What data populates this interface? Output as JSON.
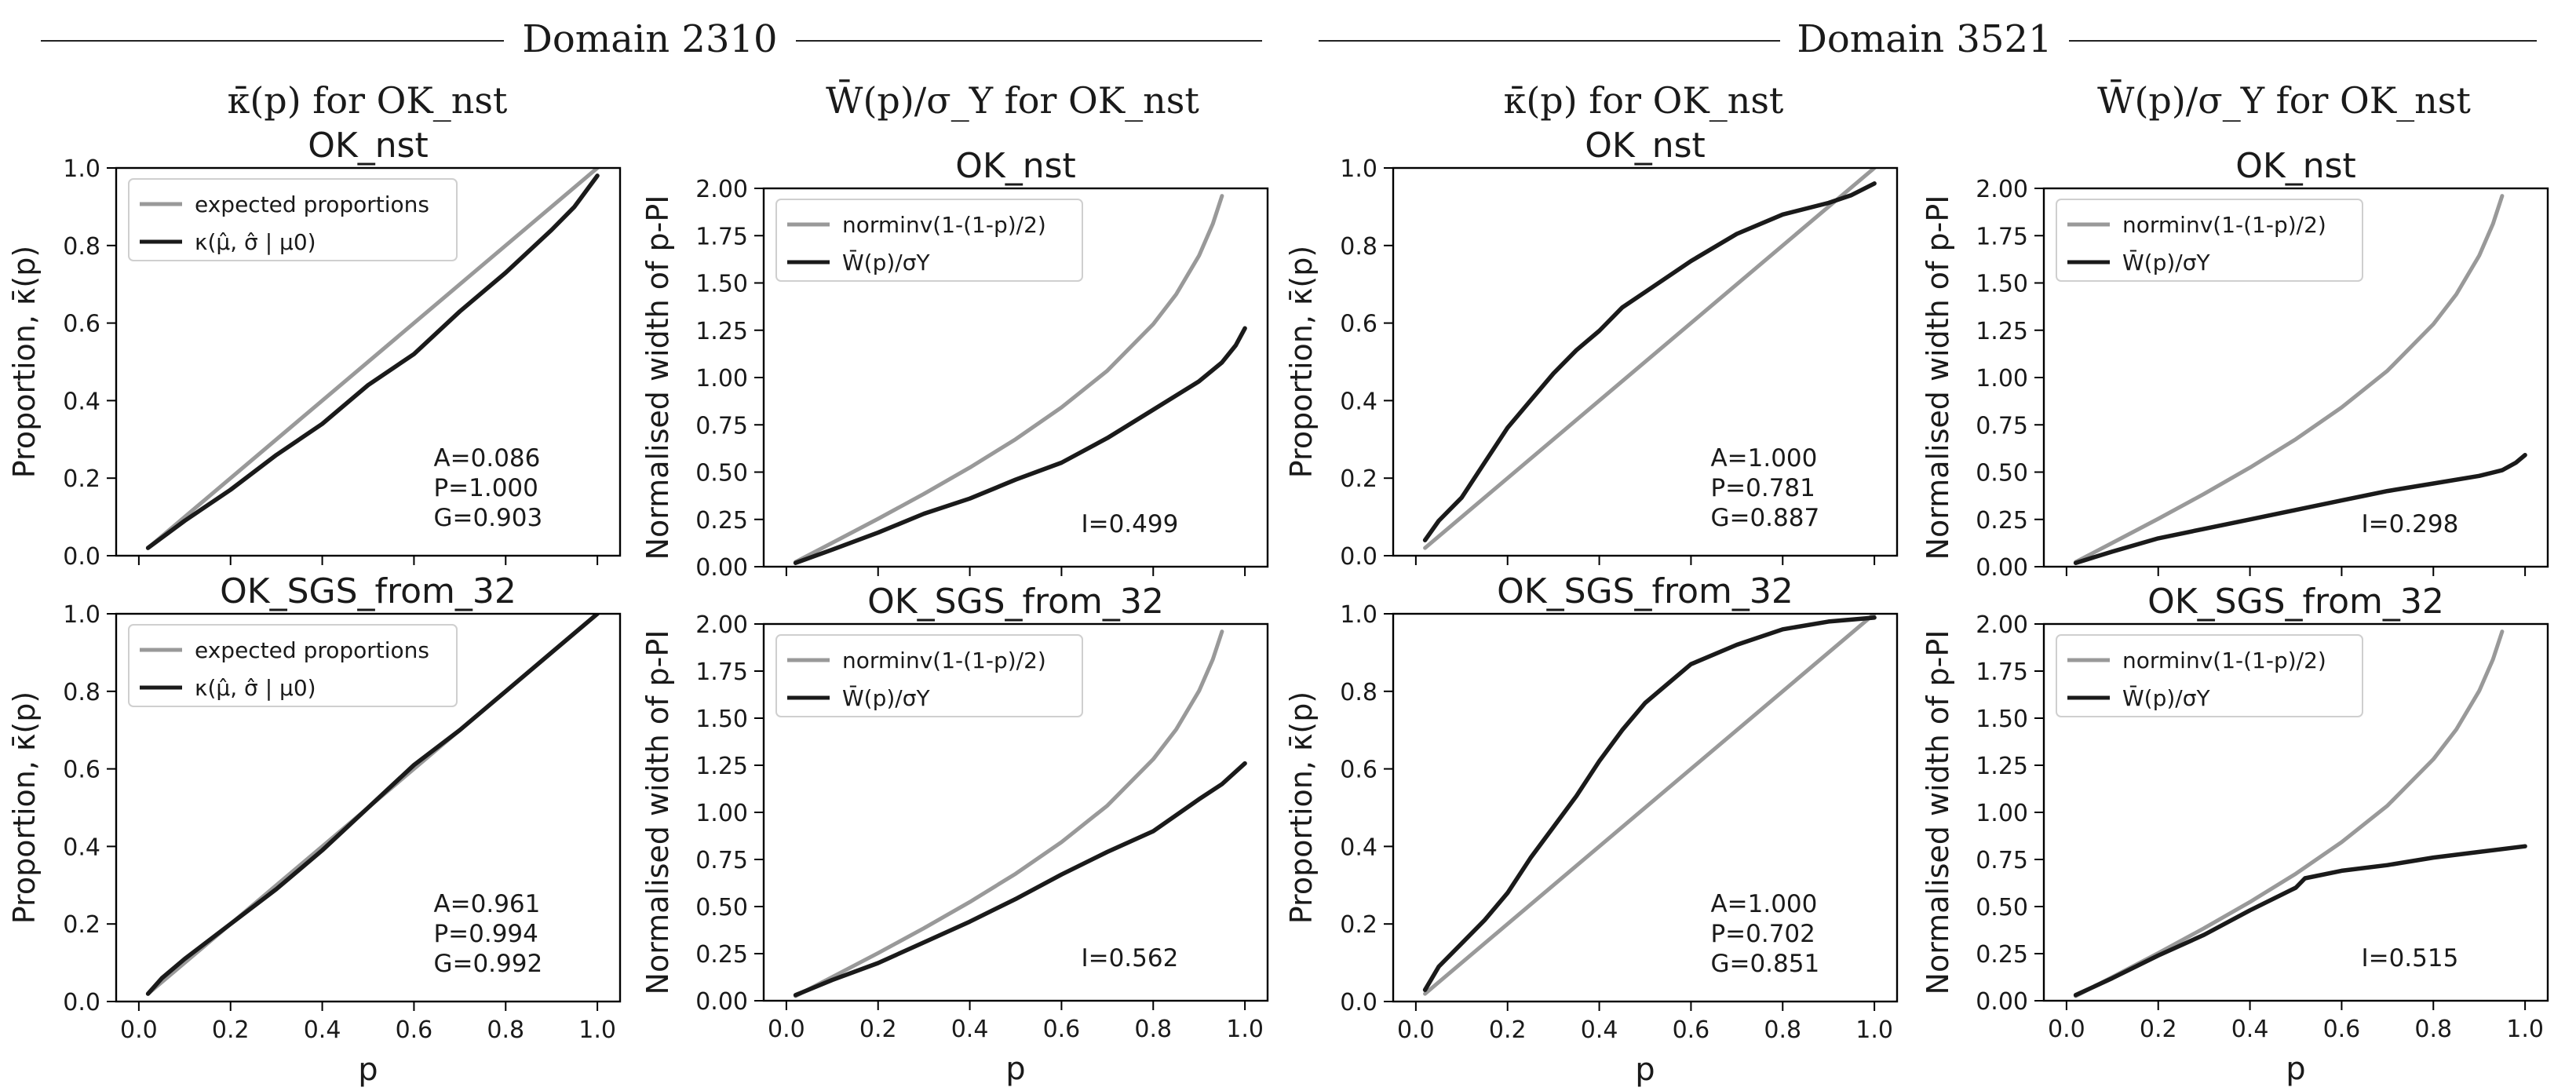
{
  "domains": [
    {
      "label": "Domain 2310"
    },
    {
      "label": "Domain 3521"
    }
  ],
  "column_headers": [
    {
      "math": "κ̄(p)",
      "rest": " for OK_nst"
    },
    {
      "math": "W̄(p)/σ_Y",
      "rest": " for OK_nst"
    },
    {
      "math": "κ̄(p)",
      "rest": " for OK_nst"
    },
    {
      "math": "W̄(p)/σ_Y",
      "rest": " for OK_nst"
    }
  ],
  "colors": {
    "reference": "#999999",
    "observed": "#1a1a1a"
  },
  "chart_data": [
    {
      "type": "line",
      "kind": "proportion",
      "domain": "Domain 2310",
      "title": "OK_nst",
      "xlabel": "p",
      "ylabel": "Proportion, κ̄(p)",
      "xlim": [
        0,
        1
      ],
      "ylim": [
        0,
        1
      ],
      "xticks": [
        "0.0",
        "0.2",
        "0.4",
        "0.6",
        "0.8",
        "1.0"
      ],
      "yticks": [
        "0.0",
        "0.2",
        "0.4",
        "0.6",
        "0.8",
        "1.0"
      ],
      "show_xtick_labels": false,
      "legend": [
        "expected proportions",
        "κ(μ̂, σ̂ | μ0)"
      ],
      "annotation": [
        "A=0.086",
        "P=1.000",
        "G=0.903"
      ],
      "series": [
        {
          "name": "expected proportions",
          "role": "reference",
          "x": [
            0.02,
            1.0
          ],
          "y": [
            0.02,
            1.0
          ]
        },
        {
          "name": "κ(μ̂, σ̂ | μ0)",
          "role": "observed",
          "x": [
            0.02,
            0.1,
            0.2,
            0.3,
            0.4,
            0.5,
            0.6,
            0.7,
            0.8,
            0.9,
            0.95,
            1.0
          ],
          "y": [
            0.02,
            0.09,
            0.17,
            0.26,
            0.34,
            0.44,
            0.52,
            0.63,
            0.73,
            0.84,
            0.9,
            0.98
          ]
        }
      ]
    },
    {
      "type": "line",
      "kind": "width",
      "domain": "Domain 2310",
      "title": "OK_nst",
      "xlabel": "p",
      "ylabel": "Normalised width of p-PI",
      "xlim": [
        0,
        1
      ],
      "ylim": [
        0,
        2
      ],
      "xticks": [
        "0.0",
        "0.2",
        "0.4",
        "0.6",
        "0.8",
        "1.0"
      ],
      "yticks": [
        "0.00",
        "0.25",
        "0.50",
        "0.75",
        "1.00",
        "1.25",
        "1.50",
        "1.75",
        "2.00"
      ],
      "show_xtick_labels": false,
      "legend": [
        "norminv(1-(1-p)/2)",
        "W̄(p)/σY"
      ],
      "annotation": [
        "I=0.499"
      ],
      "series": [
        {
          "name": "norminv(1-(1-p)/2)",
          "role": "reference",
          "x": [
            0.02,
            0.1,
            0.2,
            0.3,
            0.4,
            0.5,
            0.6,
            0.7,
            0.8,
            0.85,
            0.9,
            0.93,
            0.95
          ],
          "y": [
            0.025,
            0.126,
            0.253,
            0.385,
            0.524,
            0.674,
            0.842,
            1.036,
            1.282,
            1.44,
            1.645,
            1.812,
            1.96
          ]
        },
        {
          "name": "W̄(p)/σY",
          "role": "observed",
          "x": [
            0.02,
            0.1,
            0.2,
            0.3,
            0.4,
            0.5,
            0.6,
            0.7,
            0.8,
            0.9,
            0.95,
            0.98,
            1.0
          ],
          "y": [
            0.02,
            0.09,
            0.18,
            0.28,
            0.36,
            0.46,
            0.55,
            0.68,
            0.83,
            0.98,
            1.08,
            1.17,
            1.26
          ]
        }
      ]
    },
    {
      "type": "line",
      "kind": "proportion",
      "domain": "Domain 3521",
      "title": "OK_nst",
      "xlabel": "p",
      "ylabel": "Proportion, κ̄(p)",
      "xlim": [
        0,
        1
      ],
      "ylim": [
        0,
        1
      ],
      "xticks": [
        "0.0",
        "0.2",
        "0.4",
        "0.6",
        "0.8",
        "1.0"
      ],
      "yticks": [
        "0.0",
        "0.2",
        "0.4",
        "0.6",
        "0.8",
        "1.0"
      ],
      "show_xtick_labels": false,
      "legend": [],
      "annotation": [
        "A=1.000",
        "P=0.781",
        "G=0.887"
      ],
      "series": [
        {
          "name": "expected proportions",
          "role": "reference",
          "x": [
            0.02,
            1.0
          ],
          "y": [
            0.02,
            1.0
          ]
        },
        {
          "name": "κ(μ̂, σ̂ | μ0)",
          "role": "observed",
          "x": [
            0.02,
            0.05,
            0.1,
            0.15,
            0.2,
            0.25,
            0.3,
            0.35,
            0.4,
            0.45,
            0.5,
            0.6,
            0.7,
            0.8,
            0.9,
            0.95,
            1.0
          ],
          "y": [
            0.04,
            0.09,
            0.15,
            0.24,
            0.33,
            0.4,
            0.47,
            0.53,
            0.58,
            0.64,
            0.68,
            0.76,
            0.83,
            0.88,
            0.91,
            0.93,
            0.96
          ]
        }
      ]
    },
    {
      "type": "line",
      "kind": "width",
      "domain": "Domain 3521",
      "title": "OK_nst",
      "xlabel": "p",
      "ylabel": "Normalised width of p-PI",
      "xlim": [
        0,
        1
      ],
      "ylim": [
        0,
        2
      ],
      "xticks": [
        "0.0",
        "0.2",
        "0.4",
        "0.6",
        "0.8",
        "1.0"
      ],
      "yticks": [
        "0.00",
        "0.25",
        "0.50",
        "0.75",
        "1.00",
        "1.25",
        "1.50",
        "1.75",
        "2.00"
      ],
      "show_xtick_labels": false,
      "legend": [
        "norminv(1-(1-p)/2)",
        "W̄(p)/σY"
      ],
      "annotation": [
        "I=0.298"
      ],
      "series": [
        {
          "name": "norminv(1-(1-p)/2)",
          "role": "reference",
          "x": [
            0.02,
            0.1,
            0.2,
            0.3,
            0.4,
            0.5,
            0.6,
            0.7,
            0.8,
            0.85,
            0.9,
            0.93,
            0.95
          ],
          "y": [
            0.025,
            0.126,
            0.253,
            0.385,
            0.524,
            0.674,
            0.842,
            1.036,
            1.282,
            1.44,
            1.645,
            1.812,
            1.96
          ]
        },
        {
          "name": "W̄(p)/σY",
          "role": "observed",
          "x": [
            0.02,
            0.1,
            0.2,
            0.3,
            0.4,
            0.5,
            0.6,
            0.7,
            0.8,
            0.9,
            0.95,
            0.98,
            1.0
          ],
          "y": [
            0.02,
            0.08,
            0.15,
            0.2,
            0.25,
            0.3,
            0.35,
            0.4,
            0.44,
            0.48,
            0.51,
            0.55,
            0.59
          ]
        }
      ]
    },
    {
      "type": "line",
      "kind": "proportion",
      "domain": "Domain 2310",
      "title": "OK_SGS_from_32",
      "xlabel": "p",
      "ylabel": "Proportion, κ̄(p)",
      "xlim": [
        0,
        1
      ],
      "ylim": [
        0,
        1
      ],
      "xticks": [
        "0.0",
        "0.2",
        "0.4",
        "0.6",
        "0.8",
        "1.0"
      ],
      "yticks": [
        "0.0",
        "0.2",
        "0.4",
        "0.6",
        "0.8",
        "1.0"
      ],
      "show_xtick_labels": true,
      "legend": [
        "expected proportions",
        "κ(μ̂, σ̂ | μ0)"
      ],
      "annotation": [
        "A=0.961",
        "P=0.994",
        "G=0.992"
      ],
      "series": [
        {
          "name": "expected proportions",
          "role": "reference",
          "x": [
            0.02,
            1.0
          ],
          "y": [
            0.02,
            1.0
          ]
        },
        {
          "name": "κ(μ̂, σ̂ | μ0)",
          "role": "observed",
          "x": [
            0.02,
            0.05,
            0.1,
            0.2,
            0.3,
            0.4,
            0.5,
            0.6,
            0.7,
            0.8,
            0.9,
            1.0
          ],
          "y": [
            0.02,
            0.06,
            0.11,
            0.2,
            0.29,
            0.39,
            0.5,
            0.61,
            0.7,
            0.8,
            0.9,
            1.0
          ]
        }
      ]
    },
    {
      "type": "line",
      "kind": "width",
      "domain": "Domain 2310",
      "title": "OK_SGS_from_32",
      "xlabel": "p",
      "ylabel": "Normalised width of p-PI",
      "xlim": [
        0,
        1
      ],
      "ylim": [
        0,
        2
      ],
      "xticks": [
        "0.0",
        "0.2",
        "0.4",
        "0.6",
        "0.8",
        "1.0"
      ],
      "yticks": [
        "0.00",
        "0.25",
        "0.50",
        "0.75",
        "1.00",
        "1.25",
        "1.50",
        "1.75",
        "2.00"
      ],
      "show_xtick_labels": true,
      "legend": [
        "norminv(1-(1-p)/2)",
        "W̄(p)/σY"
      ],
      "annotation": [
        "I=0.562"
      ],
      "series": [
        {
          "name": "norminv(1-(1-p)/2)",
          "role": "reference",
          "x": [
            0.02,
            0.1,
            0.2,
            0.3,
            0.4,
            0.5,
            0.6,
            0.7,
            0.8,
            0.85,
            0.9,
            0.93,
            0.95
          ],
          "y": [
            0.025,
            0.126,
            0.253,
            0.385,
            0.524,
            0.674,
            0.842,
            1.036,
            1.282,
            1.44,
            1.645,
            1.812,
            1.96
          ]
        },
        {
          "name": "W̄(p)/σY",
          "role": "observed",
          "x": [
            0.02,
            0.1,
            0.2,
            0.3,
            0.4,
            0.5,
            0.6,
            0.7,
            0.8,
            0.9,
            0.95,
            1.0
          ],
          "y": [
            0.03,
            0.11,
            0.2,
            0.31,
            0.42,
            0.54,
            0.67,
            0.79,
            0.9,
            1.07,
            1.15,
            1.26
          ]
        }
      ]
    },
    {
      "type": "line",
      "kind": "proportion",
      "domain": "Domain 3521",
      "title": "OK_SGS_from_32",
      "xlabel": "p",
      "ylabel": "Proportion, κ̄(p)",
      "xlim": [
        0,
        1
      ],
      "ylim": [
        0,
        1
      ],
      "xticks": [
        "0.0",
        "0.2",
        "0.4",
        "0.6",
        "0.8",
        "1.0"
      ],
      "yticks": [
        "0.0",
        "0.2",
        "0.4",
        "0.6",
        "0.8",
        "1.0"
      ],
      "show_xtick_labels": true,
      "legend": [],
      "annotation": [
        "A=1.000",
        "P=0.702",
        "G=0.851"
      ],
      "series": [
        {
          "name": "expected proportions",
          "role": "reference",
          "x": [
            0.02,
            1.0
          ],
          "y": [
            0.02,
            1.0
          ]
        },
        {
          "name": "κ(μ̂, σ̂ | μ0)",
          "role": "observed",
          "x": [
            0.02,
            0.05,
            0.1,
            0.15,
            0.2,
            0.25,
            0.3,
            0.35,
            0.4,
            0.45,
            0.5,
            0.55,
            0.6,
            0.7,
            0.8,
            0.9,
            1.0
          ],
          "y": [
            0.03,
            0.09,
            0.15,
            0.21,
            0.28,
            0.37,
            0.45,
            0.53,
            0.62,
            0.7,
            0.77,
            0.82,
            0.87,
            0.92,
            0.96,
            0.98,
            0.99
          ]
        }
      ]
    },
    {
      "type": "line",
      "kind": "width",
      "domain": "Domain 3521",
      "title": "OK_SGS_from_32",
      "xlabel": "p",
      "ylabel": "Normalised width of p-PI",
      "xlim": [
        0,
        1
      ],
      "ylim": [
        0,
        2
      ],
      "xticks": [
        "0.0",
        "0.2",
        "0.4",
        "0.6",
        "0.8",
        "1.0"
      ],
      "yticks": [
        "0.00",
        "0.25",
        "0.50",
        "0.75",
        "1.00",
        "1.25",
        "1.50",
        "1.75",
        "2.00"
      ],
      "show_xtick_labels": true,
      "legend": [
        "norminv(1-(1-p)/2)",
        "W̄(p)/σY"
      ],
      "annotation": [
        "I=0.515"
      ],
      "series": [
        {
          "name": "norminv(1-(1-p)/2)",
          "role": "reference",
          "x": [
            0.02,
            0.1,
            0.2,
            0.3,
            0.4,
            0.5,
            0.6,
            0.7,
            0.8,
            0.85,
            0.9,
            0.93,
            0.95
          ],
          "y": [
            0.025,
            0.126,
            0.253,
            0.385,
            0.524,
            0.674,
            0.842,
            1.036,
            1.282,
            1.44,
            1.645,
            1.812,
            1.96
          ]
        },
        {
          "name": "W̄(p)/σY",
          "role": "observed",
          "x": [
            0.02,
            0.1,
            0.2,
            0.3,
            0.4,
            0.5,
            0.52,
            0.6,
            0.7,
            0.8,
            0.9,
            1.0
          ],
          "y": [
            0.03,
            0.12,
            0.24,
            0.35,
            0.48,
            0.6,
            0.65,
            0.69,
            0.72,
            0.76,
            0.79,
            0.82
          ]
        }
      ]
    }
  ]
}
